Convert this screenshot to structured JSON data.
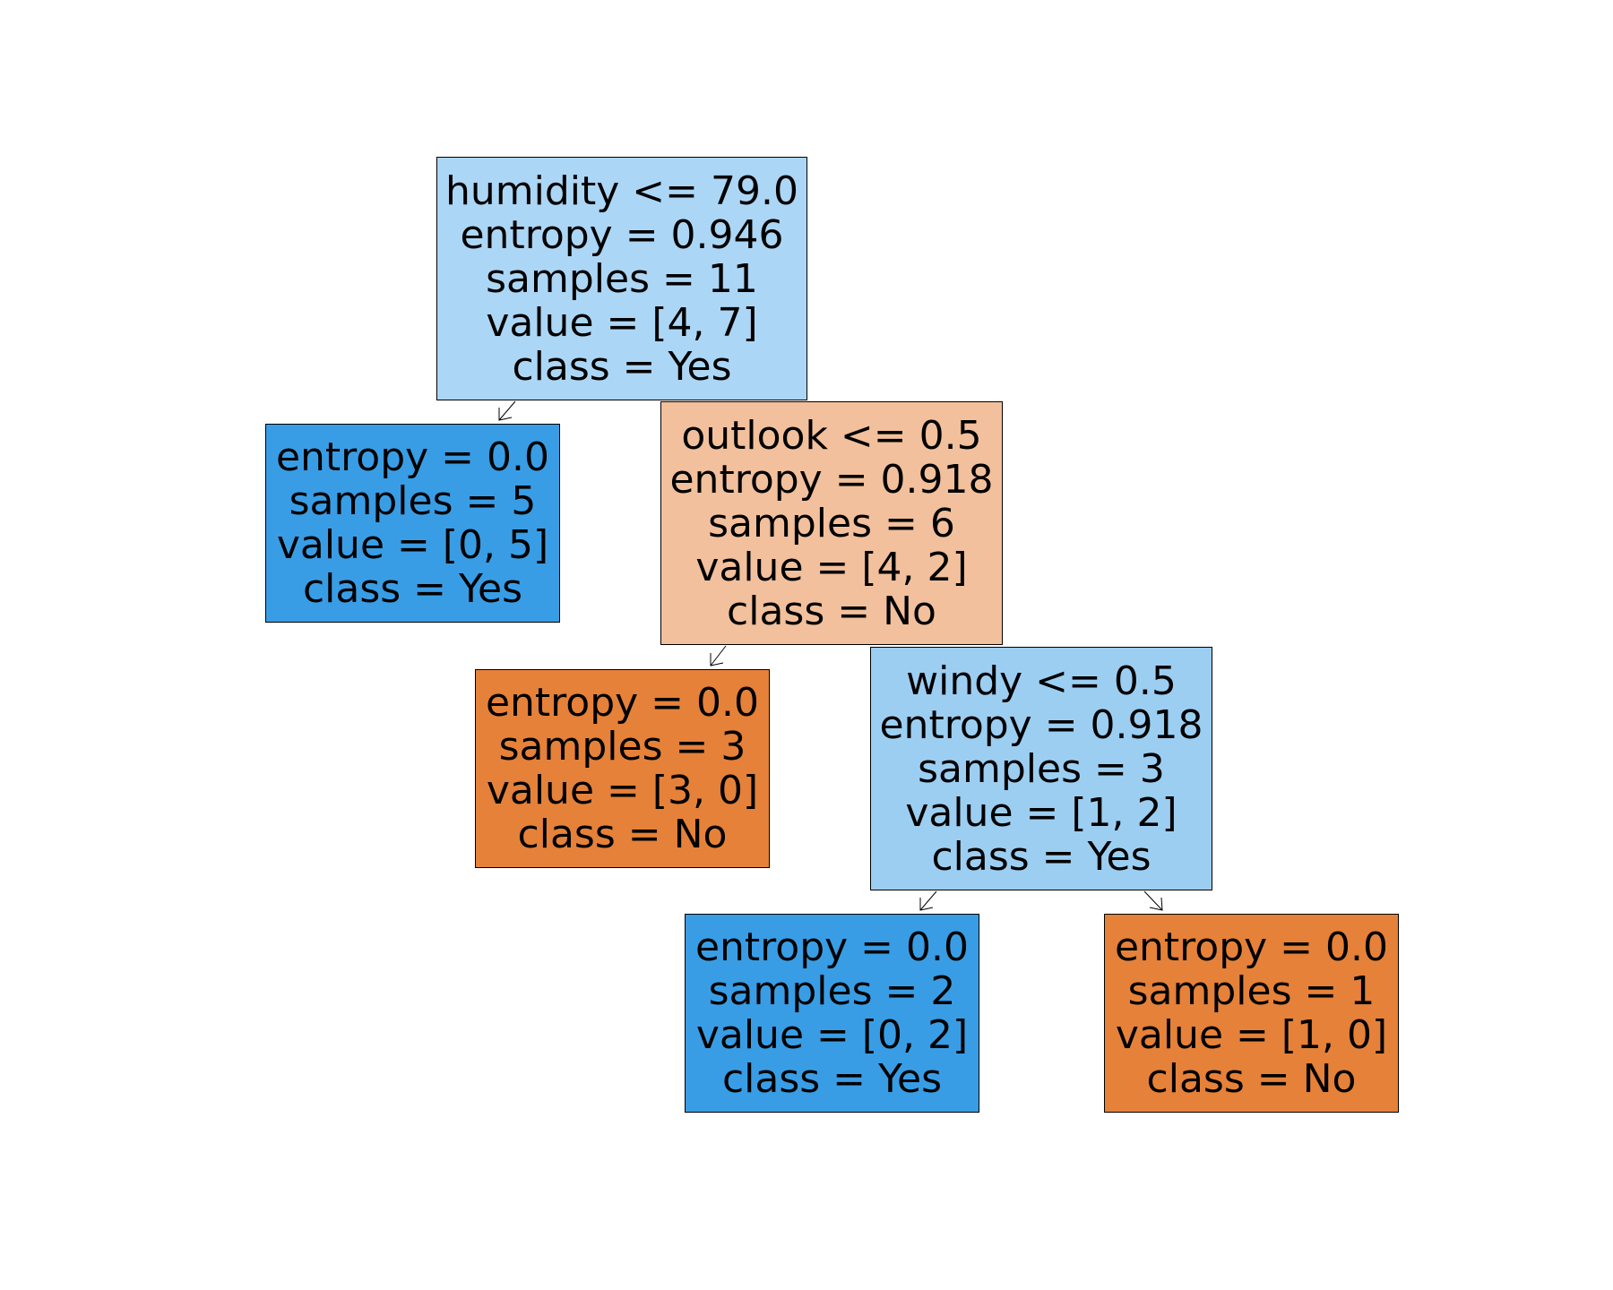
{
  "colors": {
    "light_blue": "#acd6f5",
    "lighter_blue": "#9ccef2",
    "strong_blue": "#399de5",
    "light_orange": "#f2c09c",
    "strong_orange": "#e58139",
    "border": "#000000",
    "edge": "#000000"
  },
  "nodes": [
    {
      "id": "n0",
      "lines": [
        "humidity <= 79.0",
        "entropy = 0.946",
        "samples = 11",
        "value = [4, 7]",
        "class = Yes"
      ],
      "fill": "#acd6f5"
    },
    {
      "id": "n1",
      "lines": [
        "entropy = 0.0",
        "samples = 5",
        "value = [0, 5]",
        "class = Yes"
      ],
      "fill": "#399de5"
    },
    {
      "id": "n2",
      "lines": [
        "outlook <= 0.5",
        "entropy = 0.918",
        "samples = 6",
        "value = [4, 2]",
        "class = No"
      ],
      "fill": "#f2c09c"
    },
    {
      "id": "n3",
      "lines": [
        "entropy = 0.0",
        "samples = 3",
        "value = [3, 0]",
        "class = No"
      ],
      "fill": "#e58139"
    },
    {
      "id": "n4",
      "lines": [
        "windy <= 0.5",
        "entropy = 0.918",
        "samples = 3",
        "value = [1, 2]",
        "class = Yes"
      ],
      "fill": "#9ccef2"
    },
    {
      "id": "n5",
      "lines": [
        "entropy = 0.0",
        "samples = 2",
        "value = [0, 2]",
        "class = Yes"
      ],
      "fill": "#399de5"
    },
    {
      "id": "n6",
      "lines": [
        "entropy = 0.0",
        "samples = 1",
        "value = [1, 0]",
        "class = No"
      ],
      "fill": "#e58139"
    }
  ],
  "edges": [
    {
      "from": "n0",
      "to": "n1"
    },
    {
      "from": "n0",
      "to": "n2"
    },
    {
      "from": "n2",
      "to": "n3"
    },
    {
      "from": "n2",
      "to": "n4"
    },
    {
      "from": "n4",
      "to": "n5"
    },
    {
      "from": "n4",
      "to": "n6"
    }
  ]
}
